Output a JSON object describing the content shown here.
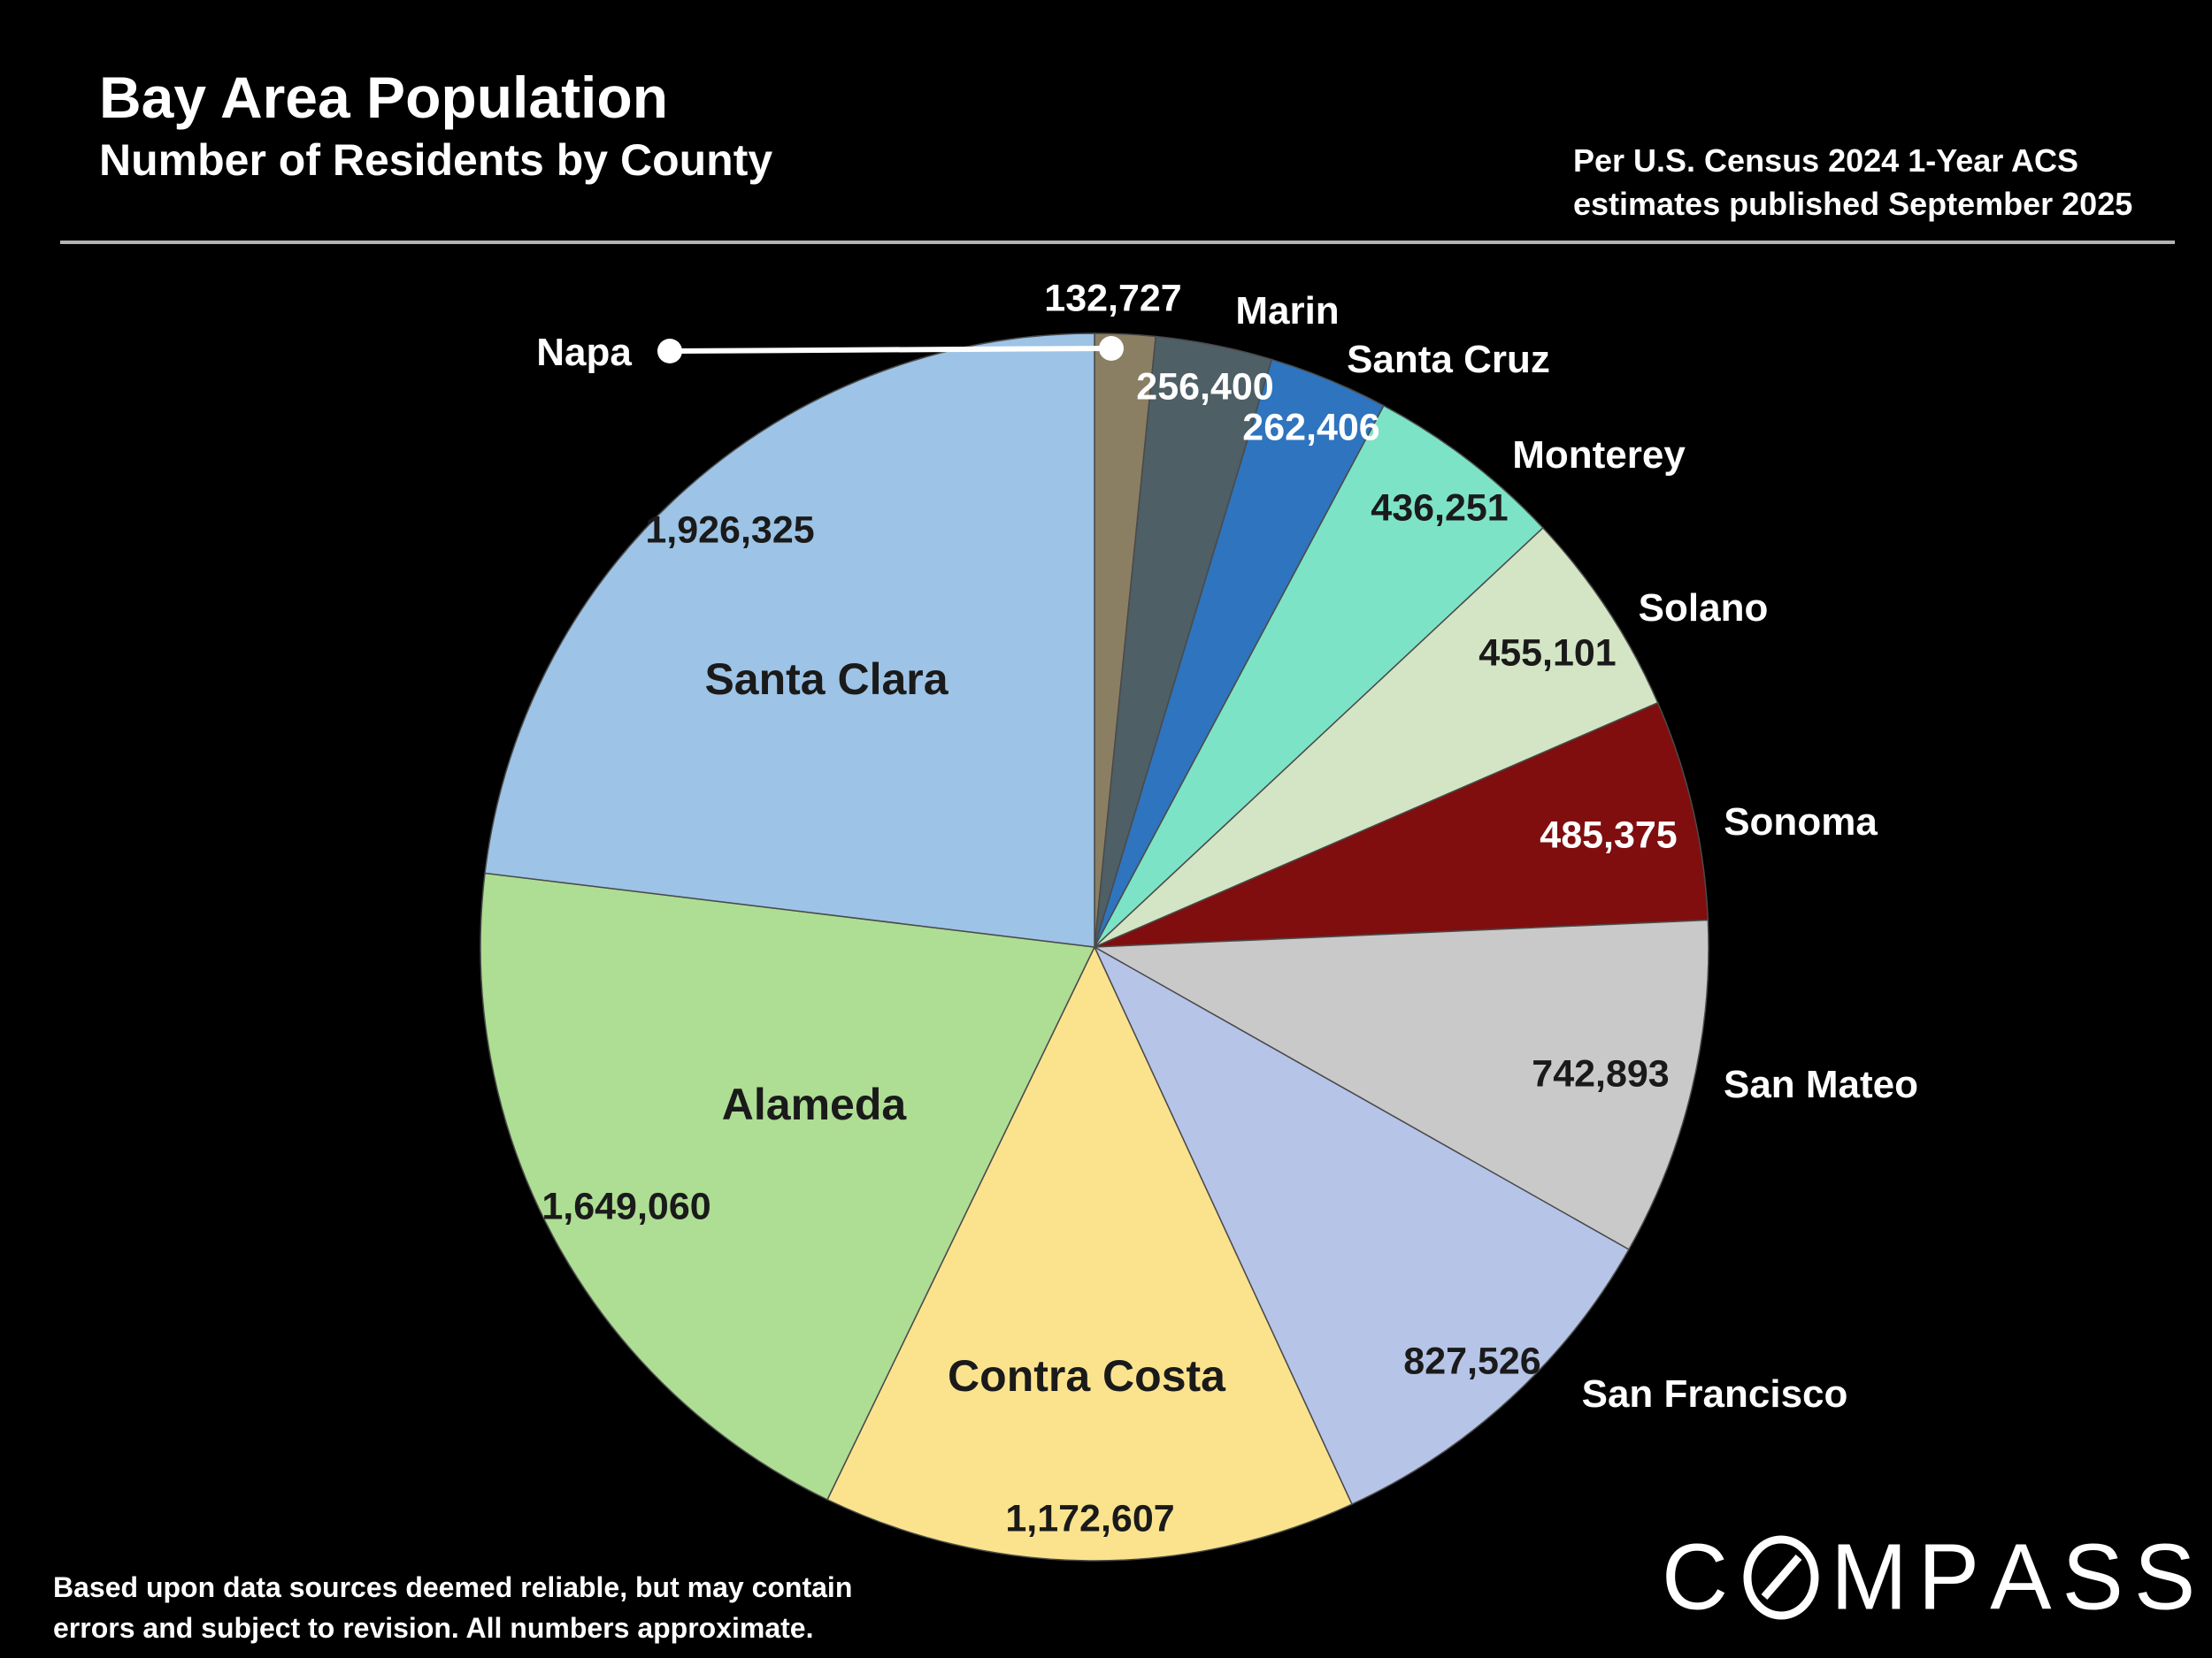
{
  "header": {
    "title": "Bay Area Population",
    "subtitle": "Number of Residents by County",
    "credit_line1": "Per U.S. Census 2024 1-Year ACS",
    "credit_line2": "estimates published September 2025"
  },
  "chart_data": {
    "type": "pie",
    "title": "Bay Area Population",
    "subtitle": "Number of Residents by County",
    "direction": "clockwise",
    "start_angle": "12-o-clock",
    "slices": [
      {
        "key": "napa",
        "label": "Napa",
        "value": 132727,
        "value_label": "132,727",
        "color": "#8A7F63",
        "value_text": "light",
        "callout": true
      },
      {
        "key": "marin",
        "label": "Marin",
        "value": 256400,
        "value_label": "256,400",
        "color": "#4E5F66",
        "value_text": "light"
      },
      {
        "key": "santa-cruz",
        "label": "Santa Cruz",
        "value": 262406,
        "value_label": "262,406",
        "color": "#2E74BE",
        "value_text": "light"
      },
      {
        "key": "monterey",
        "label": "Monterey",
        "value": 436251,
        "value_label": "436,251",
        "color": "#7CE3C6",
        "value_text": "dark"
      },
      {
        "key": "solano",
        "label": "Solano",
        "value": 455101,
        "value_label": "455,101",
        "color": "#D3E5C4",
        "value_text": "dark"
      },
      {
        "key": "sonoma",
        "label": "Sonoma",
        "value": 485375,
        "value_label": "485,375",
        "color": "#800E0E",
        "value_text": "light"
      },
      {
        "key": "san-mateo",
        "label": "San Mateo",
        "value": 742893,
        "value_label": "742,893",
        "color": "#C9C9C9",
        "value_text": "dark"
      },
      {
        "key": "san-francisco",
        "label": "San Francisco",
        "value": 827526,
        "value_label": "827,526",
        "color": "#B6C4E8",
        "value_text": "dark"
      },
      {
        "key": "contra-costa",
        "label": "Contra Costa",
        "value": 1172607,
        "value_label": "1,172,607",
        "color": "#FBE38E",
        "value_text": "dark",
        "name_inside": true
      },
      {
        "key": "alameda",
        "label": "Alameda",
        "value": 1649060,
        "value_label": "1,649,060",
        "color": "#AEDD94",
        "value_text": "dark",
        "name_inside": true
      },
      {
        "key": "santa-clara",
        "label": "Santa Clara",
        "value": 1926325,
        "value_label": "1,926,325",
        "color": "#9DC3E6",
        "value_text": "dark",
        "name_inside": true
      }
    ],
    "legend": "none",
    "grid": false
  },
  "footer": {
    "disclaimer_line1": "Based upon data sources deemed reliable, but may contain",
    "disclaimer_line2": "errors and subject to revision. All numbers  approximate.",
    "brand": "COMPASS"
  },
  "colors": {
    "background": "#000000",
    "divider": "#B3B3B3",
    "text": "#FFFFFF",
    "dark_label": "#1A1A1A",
    "slice_edge": "#4A4A4A"
  }
}
